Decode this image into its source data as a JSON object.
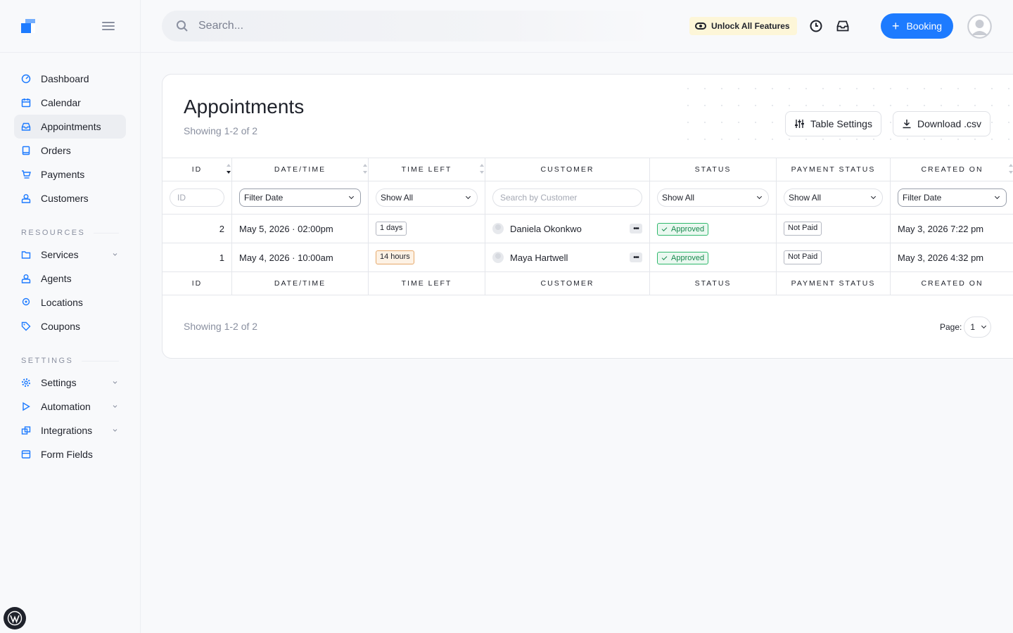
{
  "sidebar": {
    "items": [
      {
        "label": "Dashboard",
        "icon": "dashboard-icon"
      },
      {
        "label": "Calendar",
        "icon": "calendar-icon"
      },
      {
        "label": "Appointments",
        "icon": "inbox-icon"
      },
      {
        "label": "Orders",
        "icon": "orders-icon"
      },
      {
        "label": "Payments",
        "icon": "cart-icon"
      },
      {
        "label": "Customers",
        "icon": "user-icon"
      }
    ],
    "resources_label": "RESOURCES",
    "resources": [
      {
        "label": "Services",
        "icon": "folder-icon"
      },
      {
        "label": "Agents",
        "icon": "user-icon"
      },
      {
        "label": "Locations",
        "icon": "pin-icon"
      },
      {
        "label": "Coupons",
        "icon": "tag-icon"
      }
    ],
    "settings_label": "SETTINGS",
    "settings": [
      {
        "label": "Settings",
        "icon": "gear-icon"
      },
      {
        "label": "Automation",
        "icon": "play-icon"
      },
      {
        "label": "Integrations",
        "icon": "link-icon"
      },
      {
        "label": "Form Fields",
        "icon": "form-icon"
      }
    ]
  },
  "topbar": {
    "search_placeholder": "Search...",
    "unlock_label": "Unlock All Features",
    "booking_label": "Booking"
  },
  "appointments": {
    "title": "Appointments",
    "subtitle": "Showing 1-2 of 2",
    "table_settings_label": "Table Settings",
    "download_label": "Download .csv",
    "columns": [
      "ID",
      "DATE/TIME",
      "TIME LEFT",
      "CUSTOMER",
      "STATUS",
      "PAYMENT STATUS",
      "CREATED ON"
    ],
    "filters": {
      "id_placeholder": "ID",
      "date": "Filter Date",
      "time_left": "Show All",
      "customer_placeholder": "Search by Customer",
      "status": "Show All",
      "payment_status": "Show All",
      "created_on": "Filter Date"
    },
    "rows": [
      {
        "id": "2",
        "date": "May 5, 2026",
        "time": "02:00pm",
        "time_left": "1 days",
        "customer": "Daniela Okonkwo",
        "status": "Approved",
        "payment_status": "Not Paid",
        "created_on": "May 3, 2026 7:22 pm"
      },
      {
        "id": "1",
        "date": "May 4, 2026",
        "time": "10:00am",
        "time_left": "14 hours",
        "customer": "Maya Hartwell",
        "status": "Approved",
        "payment_status": "Not Paid",
        "created_on": "May 3, 2026 4:32 pm"
      }
    ],
    "footer_text": "Showing 1-2 of 2",
    "page_label": "Page:",
    "page_value": "1"
  },
  "colors": {
    "accent": "#1d7bff",
    "approved": "#17894d",
    "warn": "#e6a86a"
  }
}
